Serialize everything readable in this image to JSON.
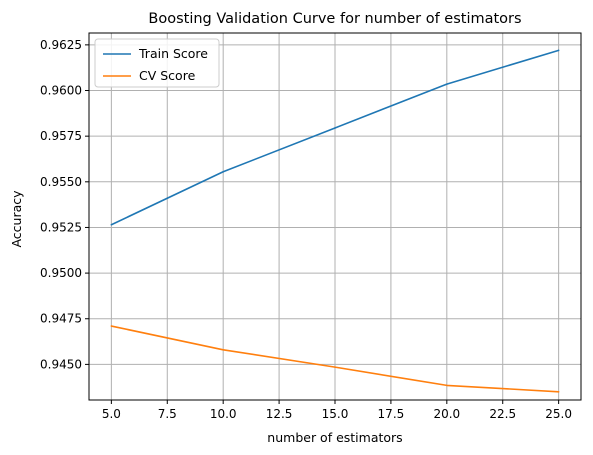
{
  "chart_data": {
    "type": "line",
    "title": "Boosting Validation Curve for number of estimators",
    "xlabel": "number of estimators",
    "ylabel": "Accuracy",
    "x": [
      5,
      10,
      15,
      20,
      25
    ],
    "series": [
      {
        "name": "Train Score",
        "color": "#1f77b4",
        "values": [
          0.95265,
          0.95555,
          0.95795,
          0.96035,
          0.9622
        ]
      },
      {
        "name": "CV Score",
        "color": "#ff7f0e",
        "values": [
          0.9471,
          0.9458,
          0.94485,
          0.94385,
          0.9435
        ]
      }
    ],
    "xlim": [
      4.0,
      26.0
    ],
    "ylim": [
      0.94305,
      0.96315
    ],
    "xticks": [
      5.0,
      7.5,
      10.0,
      12.5,
      15.0,
      17.5,
      20.0,
      22.5,
      25.0
    ],
    "xtick_labels": [
      "5.0",
      "7.5",
      "10.0",
      "12.5",
      "15.0",
      "17.5",
      "20.0",
      "22.5",
      "25.0"
    ],
    "yticks": [
      0.945,
      0.9475,
      0.95,
      0.9525,
      0.955,
      0.9575,
      0.96,
      0.9625
    ],
    "ytick_labels": [
      "0.9450",
      "0.9475",
      "0.9500",
      "0.9525",
      "0.9550",
      "0.9575",
      "0.9600",
      "0.9625"
    ],
    "grid": true,
    "legend": "upper-left"
  }
}
